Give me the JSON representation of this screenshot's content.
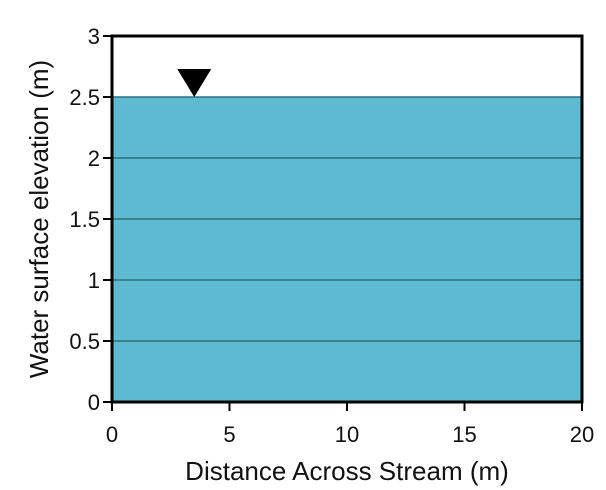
{
  "chart_data": {
    "type": "area",
    "title": "",
    "xlabel": "Distance Across Stream (m)",
    "ylabel": "Water surface elevation (m)",
    "xlim": [
      0,
      20
    ],
    "ylim": [
      0,
      3
    ],
    "x_ticks": [
      "0",
      "5",
      "10",
      "15",
      "20"
    ],
    "y_ticks": [
      "0",
      "0.5",
      "1",
      "1.5",
      "2",
      "2.5",
      "3"
    ],
    "x_tick_values": [
      0,
      5,
      10,
      15,
      20
    ],
    "y_tick_values": [
      0,
      0.5,
      1,
      1.5,
      2,
      2.5,
      3
    ],
    "horizontal_grid": true,
    "series": [
      {
        "x": [
          0,
          20
        ],
        "y": [
          2.5,
          2.5
        ]
      }
    ],
    "water_surface_marker": {
      "x": 3.5,
      "y": 2.5,
      "symbol": "inverted-triangle"
    },
    "colors": {
      "water": "#5ebad1",
      "gridline": "#2f6f80",
      "frame": "#000000",
      "marker": "#000000"
    }
  }
}
